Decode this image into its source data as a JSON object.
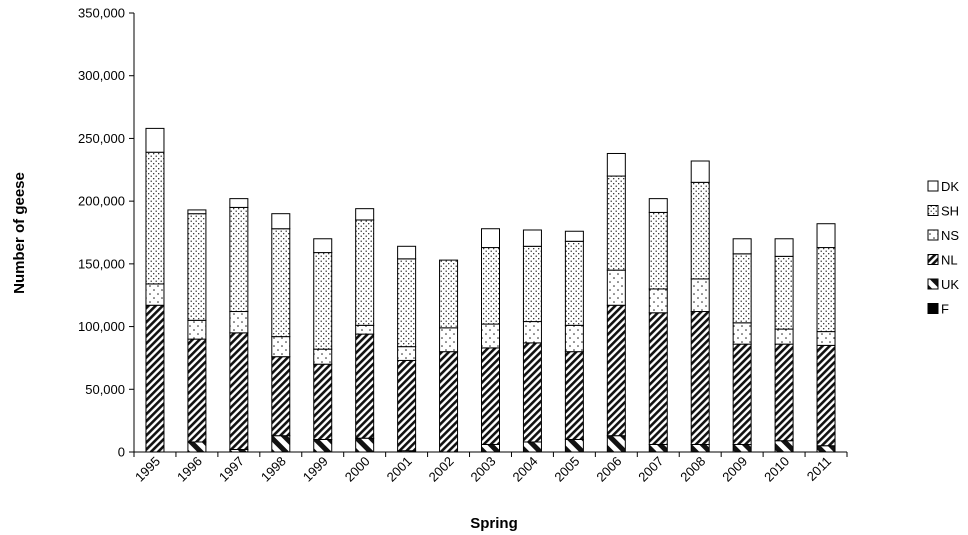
{
  "chart_data": {
    "type": "bar",
    "stacked": true,
    "title": "",
    "xlabel": "Spring",
    "ylabel": "Number of geese",
    "ylim": [
      0,
      350000
    ],
    "yticks": [
      "0",
      "50,000",
      "100,000",
      "150,000",
      "200,000",
      "250,000",
      "300,000",
      "350,000"
    ],
    "ytick_values": [
      0,
      50000,
      100000,
      150000,
      200000,
      250000,
      300000,
      350000
    ],
    "grid": false,
    "legend_position": "right",
    "categories": [
      "1995",
      "1996",
      "1997",
      "1998",
      "1999",
      "2000",
      "2001",
      "2002",
      "2003",
      "2004",
      "2005",
      "2006",
      "2007",
      "2008",
      "2009",
      "2010",
      "2011"
    ],
    "series": [
      {
        "name": "F",
        "pattern": "solid",
        "values": [
          0,
          0,
          0,
          0,
          0,
          0,
          0,
          0,
          0,
          0,
          0,
          0,
          0,
          0,
          0,
          0,
          0
        ]
      },
      {
        "name": "UK",
        "pattern": "stripe-wide",
        "values": [
          0,
          8000,
          2000,
          13000,
          10000,
          11000,
          1000,
          0,
          6000,
          8000,
          10000,
          13000,
          6000,
          6000,
          6000,
          9000,
          5000
        ]
      },
      {
        "name": "NL",
        "pattern": "hatch",
        "values": [
          117000,
          82000,
          93000,
          63000,
          60000,
          83000,
          72000,
          80000,
          77000,
          79000,
          70000,
          104000,
          105000,
          106000,
          80000,
          77000,
          80000
        ]
      },
      {
        "name": "NS",
        "pattern": "dots-sparse",
        "values": [
          17000,
          15000,
          17000,
          16000,
          12000,
          7000,
          11000,
          19000,
          19000,
          17000,
          21000,
          28000,
          19000,
          26000,
          17000,
          12000,
          11000
        ]
      },
      {
        "name": "SH",
        "pattern": "dots-dense",
        "values": [
          105000,
          85000,
          83000,
          86000,
          77000,
          84000,
          70000,
          54000,
          61000,
          60000,
          67000,
          75000,
          61000,
          77000,
          55000,
          58000,
          67000
        ]
      },
      {
        "name": "DK",
        "pattern": "empty",
        "values": [
          19000,
          3000,
          7000,
          12000,
          11000,
          9000,
          10000,
          0,
          15000,
          13000,
          8000,
          18000,
          11000,
          17000,
          12000,
          14000,
          19000
        ]
      }
    ]
  }
}
